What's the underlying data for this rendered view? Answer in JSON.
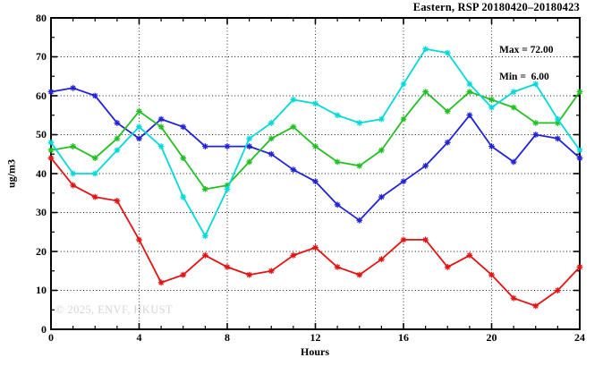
{
  "title": "Eastern, RSP 20180420–20180423",
  "annotation": {
    "max_label": "Max = 72.00",
    "min_label": "Min =  6.00"
  },
  "watermark": "© 2025, ENVF, HKUST",
  "chart_data": {
    "type": "line",
    "title": "Eastern, RSP 20180420–20180423",
    "xlabel": "Hours",
    "ylabel": "ug/m3",
    "xlim": [
      0,
      24
    ],
    "ylim": [
      0,
      80
    ],
    "xtick_labels": [
      0,
      4,
      8,
      12,
      16,
      20,
      24
    ],
    "ytick_labels": [
      0,
      10,
      20,
      30,
      40,
      50,
      60,
      70,
      80
    ],
    "xtick_minor_step": 1,
    "ytick_minor_step": 5,
    "grid": true,
    "legend": "none",
    "stats": {
      "max": 72.0,
      "min": 6.0
    },
    "x": [
      0,
      1,
      2,
      3,
      4,
      5,
      6,
      7,
      8,
      9,
      10,
      11,
      12,
      13,
      14,
      15,
      16,
      17,
      18,
      19,
      20,
      21,
      22,
      23,
      24
    ],
    "series": [
      {
        "name": "blue",
        "color": "#2222d6",
        "values": [
          61,
          62,
          60,
          53,
          49,
          54,
          52,
          47,
          47,
          47,
          45,
          41,
          38,
          32,
          28,
          34,
          38,
          42,
          48,
          55,
          47,
          43,
          50,
          49,
          44
        ]
      },
      {
        "name": "green",
        "color": "#22c022",
        "values": [
          46,
          47,
          44,
          49,
          56,
          52,
          44,
          36,
          37,
          43,
          49,
          52,
          47,
          43,
          42,
          46,
          54,
          61,
          56,
          61,
          59,
          57,
          53,
          53,
          61
        ]
      },
      {
        "name": "cyan",
        "color": "#00d9d9",
        "values": [
          48,
          40,
          40,
          46,
          52,
          47,
          34,
          24,
          36,
          49,
          53,
          59,
          58,
          55,
          53,
          54,
          63,
          72,
          71,
          63,
          57,
          61,
          63,
          54,
          46
        ]
      },
      {
        "name": "red",
        "color": "#e51212",
        "values": [
          44,
          37,
          34,
          33,
          23,
          12,
          14,
          19,
          16,
          14,
          15,
          19,
          21,
          16,
          14,
          18,
          23,
          23,
          16,
          19,
          14,
          8,
          6,
          10,
          16
        ]
      }
    ]
  }
}
